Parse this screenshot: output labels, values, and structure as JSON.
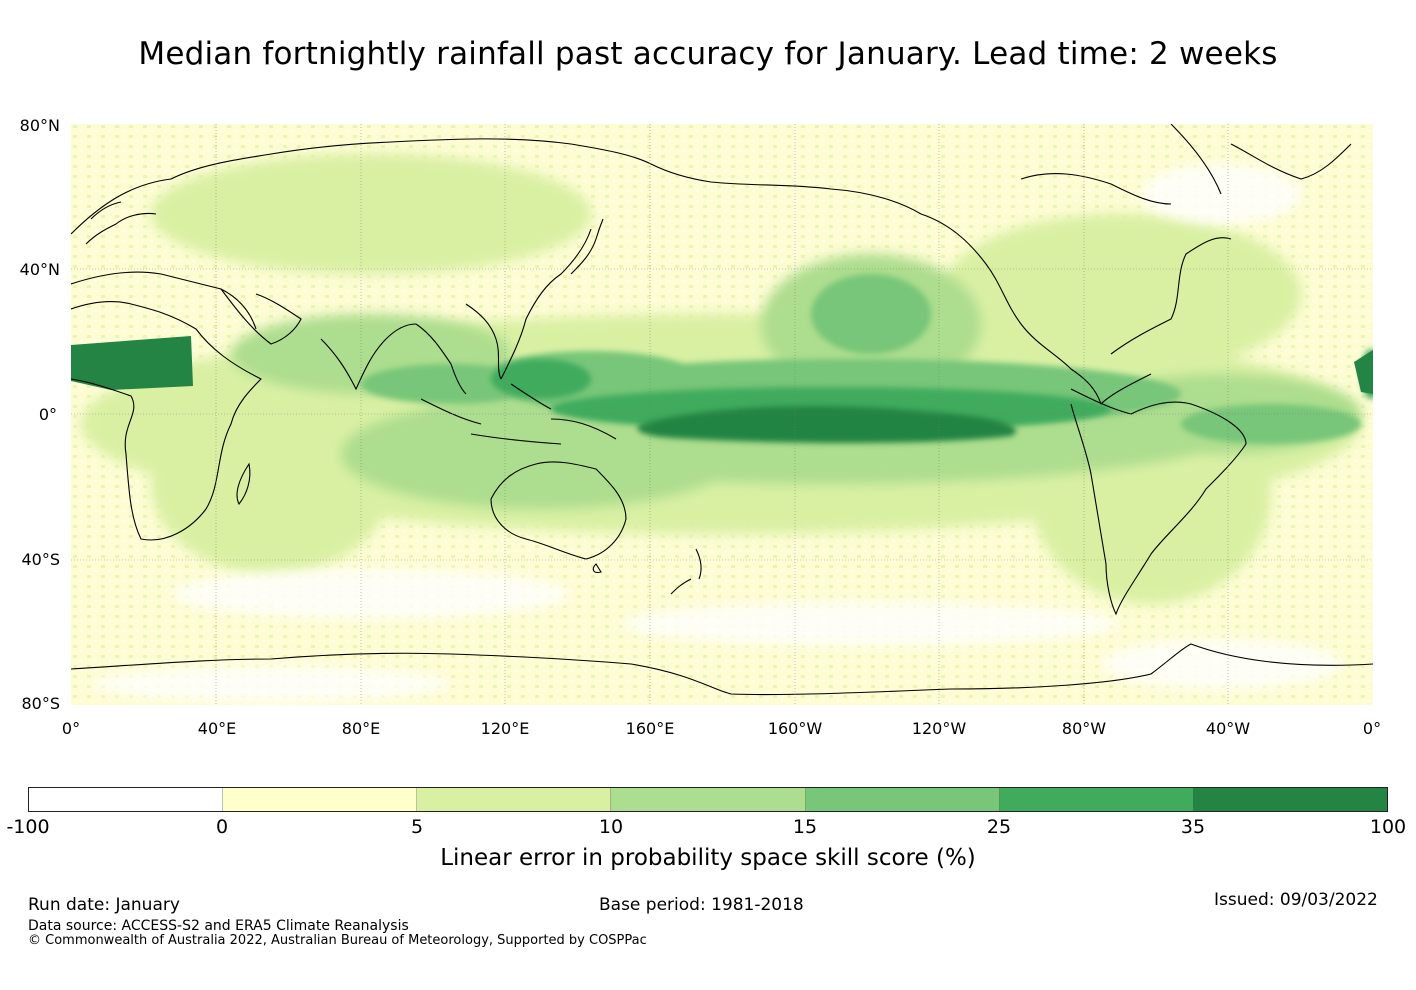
{
  "title": "Median fortnightly rainfall past accuracy for January. Lead time: 2 weeks",
  "map": {
    "lat_labels": [
      "80°N",
      "40°N",
      "0°",
      "40°S",
      "80°S"
    ],
    "lon_labels": [
      "0°",
      "40°E",
      "80°E",
      "120°E",
      "160°E",
      "160°W",
      "120°W",
      "80°W",
      "40°W",
      "0°"
    ],
    "skill_regions": [
      {
        "name": "Equatorial Pacific band",
        "category": "35 to 100"
      },
      {
        "name": "Sahara",
        "category": "35 to 100"
      },
      {
        "name": "Maritime Continent",
        "category": "25 to 35"
      },
      {
        "name": "North Pacific",
        "category": "15 to 25"
      },
      {
        "name": "Southern Ocean",
        "category": "-100 to 0"
      }
    ]
  },
  "colorbar": {
    "ticks": [
      "-100",
      "0",
      "5",
      "10",
      "15",
      "25",
      "35",
      "100"
    ],
    "colors": [
      "#ffffff",
      "#ffffcc",
      "#d9f0a3",
      "#addd8e",
      "#78c679",
      "#41ab5d",
      "#238443"
    ],
    "label": "Linear error in probability space skill score (%)"
  },
  "footer": {
    "run_date": "Run date: January",
    "base_period": "Base period: 1981-2018",
    "issued": "Issued: 09/03/2022",
    "data_source": "Data source: ACCESS-S2 and ERA5 Climate Reanalysis",
    "copyright": "© Commonwealth of Australia 2022, Australian Bureau of Meteorology, Supported by COSPPac"
  }
}
